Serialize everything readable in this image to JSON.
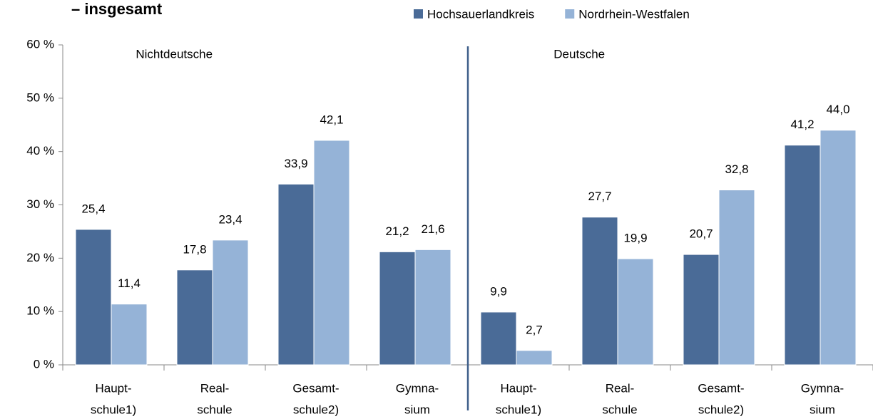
{
  "chart_data": {
    "type": "bar",
    "title": "– insgesamt",
    "groups": [
      "Nichtdeutsche",
      "Deutsche"
    ],
    "categories": [
      [
        "Haupt-",
        "schule1)"
      ],
      [
        "Real-",
        "schule"
      ],
      [
        "Gesamt-",
        "schule2)"
      ],
      [
        "Gymna-",
        "sium"
      ],
      [
        "Haupt-",
        "schule1)"
      ],
      [
        "Real-",
        "schule"
      ],
      [
        "Gesamt-",
        "schule2)"
      ],
      [
        "Gymna-",
        "sium"
      ]
    ],
    "series": [
      {
        "name": "Hochsauerlandkreis",
        "color": "#4a6b97",
        "values": [
          25.4,
          17.8,
          33.9,
          21.2,
          9.9,
          27.7,
          20.7,
          41.2
        ],
        "value_labels": [
          "25,4",
          "17,8",
          "33,9",
          "21,2",
          "9,9",
          "27,7",
          "20,7",
          "41,2"
        ]
      },
      {
        "name": "Nordrhein-Westfalen",
        "color": "#95b3d7",
        "values": [
          11.4,
          23.4,
          42.1,
          21.6,
          2.7,
          19.9,
          32.8,
          44.0
        ],
        "value_labels": [
          "11,4",
          "23,4",
          "42,1",
          "21,6",
          "2,7",
          "19,9",
          "32,8",
          "44,0"
        ]
      }
    ],
    "ylim": [
      0,
      60
    ],
    "yticks": [
      {
        "value": 0,
        "label": "0 %"
      },
      {
        "value": 10,
        "label": "10 %"
      },
      {
        "value": 20,
        "label": "20 %"
      },
      {
        "value": 30,
        "label": "30 %"
      },
      {
        "value": 40,
        "label": "40 %"
      },
      {
        "value": 50,
        "label": "50 %"
      },
      {
        "value": 60,
        "label": "60 %"
      }
    ],
    "legend": "top-right"
  }
}
